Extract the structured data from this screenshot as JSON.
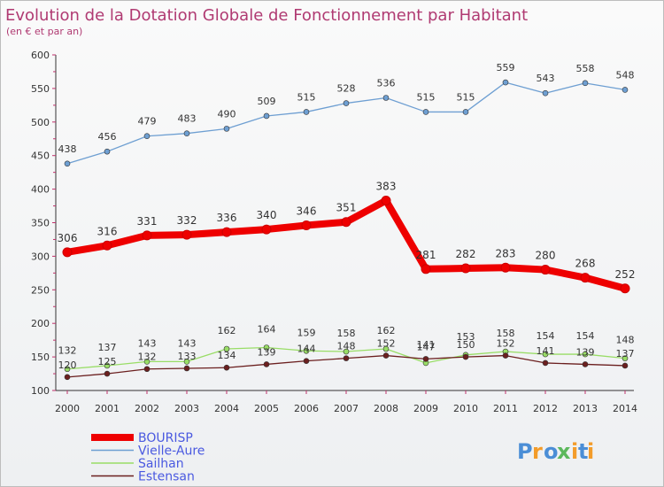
{
  "chart_data": {
    "type": "line",
    "title": "Evolution de la Dotation Globale de Fonctionnement par Habitant",
    "subtitle": "(en € et par an)",
    "xlabel": "",
    "ylabel": "",
    "ylim": [
      100,
      600
    ],
    "yticks": [
      100,
      150,
      200,
      250,
      300,
      350,
      400,
      450,
      500,
      550,
      600
    ],
    "categories": [
      "2000",
      "2001",
      "2002",
      "2003",
      "2004",
      "2005",
      "2006",
      "2007",
      "2008",
      "2009",
      "2010",
      "2011",
      "2012",
      "2013",
      "2014"
    ],
    "grid": false,
    "legend_position": "bottom-left",
    "series": [
      {
        "name": "BOURISP",
        "color": "#ee0000",
        "values": [
          306,
          316,
          331,
          332,
          336,
          340,
          346,
          351,
          383,
          281,
          282,
          283,
          280,
          268,
          252
        ]
      },
      {
        "name": "Vielle-Aure",
        "color": "#6e9fd2",
        "values": [
          438,
          456,
          479,
          483,
          490,
          509,
          515,
          528,
          536,
          515,
          515,
          559,
          543,
          558,
          548
        ]
      },
      {
        "name": "Sailhan",
        "color": "#99dd66",
        "values": [
          132,
          137,
          143,
          143,
          162,
          164,
          159,
          158,
          162,
          141,
          153,
          158,
          154,
          154,
          148
        ]
      },
      {
        "name": "Estensan",
        "color": "#6b1f1f",
        "values": [
          120,
          125,
          132,
          133,
          134,
          139,
          144,
          148,
          152,
          147,
          150,
          152,
          141,
          139,
          137
        ]
      }
    ]
  },
  "brand": {
    "letters": [
      "P",
      "r",
      "o",
      "x",
      "i",
      "t",
      "i"
    ],
    "colors": [
      "#4b8ed6",
      "#f39c2a",
      "#4b8ed6",
      "#5cb85c",
      "#f39c2a",
      "#4b8ed6",
      "#f39c2a"
    ]
  }
}
